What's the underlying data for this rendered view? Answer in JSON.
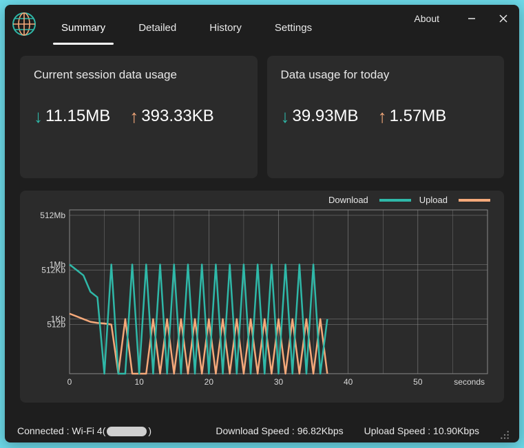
{
  "colors": {
    "window_bg": "#1e1e1e",
    "card_bg": "#2b2b2b",
    "download": "#2fb8a8",
    "upload": "#f5a97a",
    "text": "#e8e8e8",
    "axis": "#d8d8d8",
    "grid": "#888888"
  },
  "tabs": [
    {
      "label": "Summary",
      "active": true
    },
    {
      "label": "Detailed",
      "active": false
    },
    {
      "label": "History",
      "active": false
    },
    {
      "label": "Settings",
      "active": false
    }
  ],
  "about_label": "About",
  "cards": {
    "session": {
      "title": "Current session data usage",
      "download": "11.15MB",
      "upload": "393.33KB"
    },
    "today": {
      "title": "Data usage for today",
      "download": "39.93MB",
      "upload": "1.57MB"
    }
  },
  "chart": {
    "legend": {
      "download": "Download",
      "upload": "Upload"
    },
    "x": {
      "ticks": [
        0,
        10,
        20,
        30,
        40,
        50
      ],
      "max": 60,
      "label": "seconds"
    },
    "y": {
      "ticks": [
        {
          "label": "512Mb",
          "log": 29
        },
        {
          "label": "1Mb",
          "log": 20
        },
        {
          "label": "512Kb",
          "log": 19
        },
        {
          "label": "1Kb",
          "log": 10
        },
        {
          "label": "512b",
          "log": 9
        }
      ],
      "log_min": 0,
      "log_max": 30
    },
    "download_series_log": [
      20,
      19,
      18,
      15,
      14,
      0,
      20,
      0,
      0,
      20,
      0,
      20,
      0,
      20,
      0,
      20,
      0,
      20,
      0,
      20,
      0,
      20,
      0,
      20,
      0,
      20,
      0,
      20,
      0,
      20,
      0,
      20,
      0,
      20,
      0,
      20,
      0,
      10
    ],
    "upload_series_log": [
      11,
      10.5,
      10,
      9.5,
      9.3,
      9.2,
      9,
      0,
      10,
      0,
      0,
      0,
      10,
      0,
      10,
      0,
      10,
      0,
      10,
      0,
      10,
      0,
      10,
      0,
      10,
      0,
      10,
      0,
      10,
      0,
      10,
      0,
      10,
      0,
      10,
      0,
      10,
      0
    ],
    "series_x_step": 1.0
  },
  "status": {
    "connected_prefix": "Connected : Wi-Fi 4(",
    "connected_suffix": ")",
    "download_speed_label": "Download Speed : ",
    "download_speed": "96.82Kbps",
    "upload_speed_label": "Upload Speed : ",
    "upload_speed": "10.90Kbps"
  }
}
